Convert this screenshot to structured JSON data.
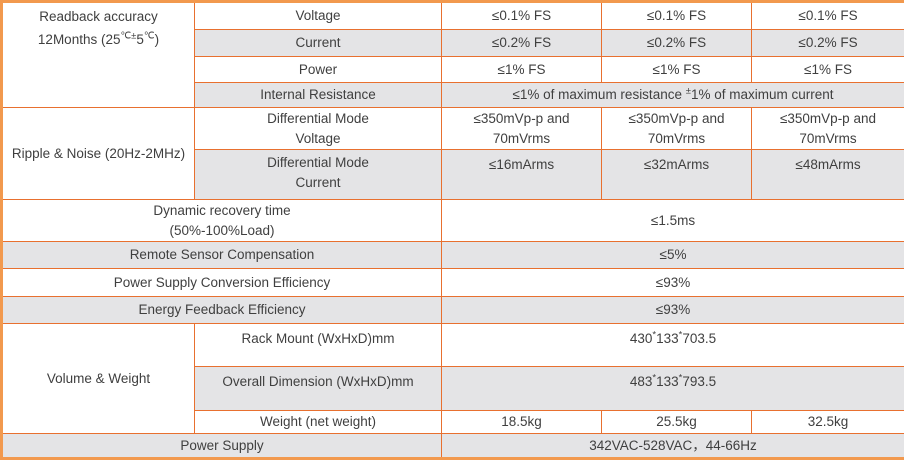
{
  "colors": {
    "outer_border": "#F2994E",
    "grid_border": "#E8702F",
    "stripe_bg": "#E4E4E6",
    "text": "#3F3F3F"
  },
  "spec_table": {
    "readback_accuracy": {
      "label_line1": "Readback accuracy",
      "label_line2_html": "12Months (25<sup>&#8451;&#177;</sup>5<sup>&#8451;</sup>)",
      "voltage": {
        "param": "Voltage",
        "values": [
          "≤0.1% FS",
          "≤0.1% FS",
          "≤0.1% FS"
        ]
      },
      "current": {
        "param": "Current",
        "values": [
          "≤0.2% FS",
          "≤0.2% FS",
          "≤0.2% FS"
        ]
      },
      "power": {
        "param": "Power",
        "values": [
          "≤1% FS",
          "≤1% FS",
          "≤1% FS"
        ]
      },
      "internal_resistance": {
        "param": "Internal Resistance",
        "value_html": "≤1% of maximum resistance <sup>±</sup>1% of maximum current"
      }
    },
    "ripple_noise": {
      "label": "Ripple & Noise (20Hz-2MHz)",
      "diff_mode_voltage": {
        "param_line1": "Differential Mode",
        "param_line2": "Voltage",
        "values": [
          "≤350mVp-p and 70mVrms",
          "≤350mVp-p and 70mVrms",
          "≤350mVp-p and 70mVrms"
        ]
      },
      "diff_mode_current": {
        "param_line1": "Differential Mode",
        "param_line2": "Current",
        "values": [
          "≤16mArms",
          "≤32mArms",
          "≤48mArms"
        ]
      }
    },
    "summary_rows": [
      {
        "label_line1": "Dynamic recovery time",
        "label_line2": "(50%-100%Load)",
        "value": "≤1.5ms"
      },
      {
        "label_line1": "Remote Sensor Compensation",
        "value": "≤5%"
      },
      {
        "label_line1": "Power Supply Conversion Efficiency",
        "value": "≤93%"
      },
      {
        "label_line1": "Energy Feedback Efficiency",
        "value": "≤93%"
      }
    ],
    "volume_weight": {
      "label": "Volume & Weight",
      "rack_mount": {
        "param": "Rack Mount (WxHxD)mm",
        "value_html": "430<sup>*</sup>133<sup>*</sup>703.5"
      },
      "overall_dimension": {
        "param": "Overall Dimension (WxHxD)mm",
        "value_html": "483<sup>*</sup>133<sup>*</sup>793.5"
      },
      "weight": {
        "param": "Weight (net weight)",
        "values": [
          "18.5kg",
          "25.5kg",
          "32.5kg"
        ]
      }
    },
    "power_supply": {
      "label": "Power Supply",
      "value": "342VAC-528VAC，44-66Hz"
    }
  }
}
